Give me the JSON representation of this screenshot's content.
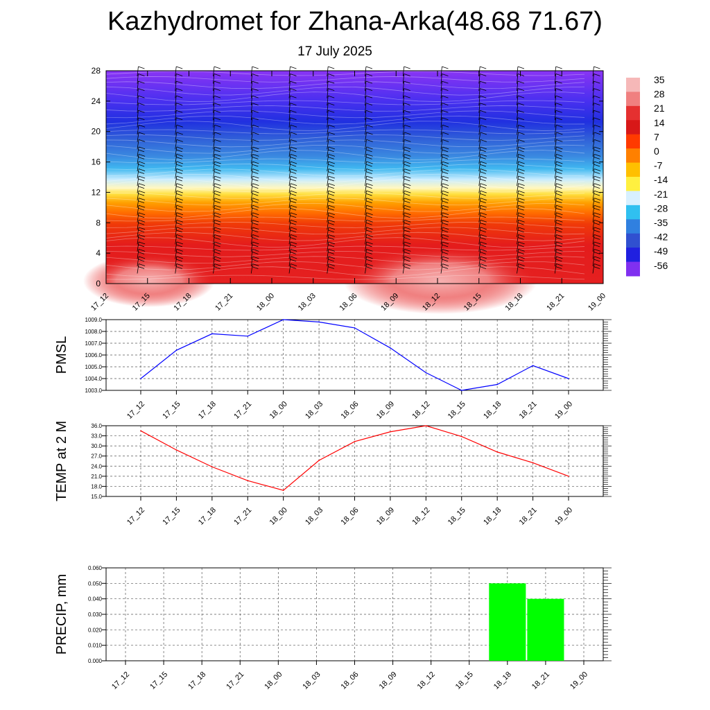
{
  "title": "Kazhydromet for Zhana-Arka(48.68 71.67)",
  "subtitle": "17 July 2025",
  "time_labels": [
    "17_12",
    "17_15",
    "17_18",
    "17_21",
    "18_00",
    "18_03",
    "18_06",
    "18_09",
    "18_12",
    "18_15",
    "18_18",
    "18_21",
    "19_00"
  ],
  "chart_data": [
    {
      "type": "heatmap",
      "y_ticks": [
        0,
        4,
        8,
        12,
        16,
        20,
        24,
        28
      ],
      "ylim": [
        0,
        28
      ],
      "x_categories": [
        "17_12",
        "17_15",
        "17_18",
        "17_21",
        "18_00",
        "18_03",
        "18_06",
        "18_09",
        "18_12",
        "18_15",
        "18_18",
        "18_21",
        "19_00"
      ],
      "colorbar_labels": [
        "35",
        "28",
        "21",
        "14",
        "7",
        "0",
        "-7",
        "-14",
        "-21",
        "-28",
        "-35",
        "-42",
        "-49",
        "-56"
      ],
      "colorbar_colors": [
        "#f6b8b8",
        "#f08080",
        "#e53030",
        "#d81818",
        "#ff3a00",
        "#ff8000",
        "#ffc000",
        "#fff040",
        "#d8f0ff",
        "#30c0f0",
        "#3080e0",
        "#3050d0",
        "#2020e0",
        "#8030f0"
      ],
      "wind_barbs": true
    },
    {
      "type": "line",
      "ylabel": "PMSL",
      "categories": [
        "17_12",
        "17_15",
        "17_18",
        "17_21",
        "18_00",
        "18_03",
        "18_06",
        "18_09",
        "18_12",
        "18_15",
        "18_18",
        "18_21",
        "19_00"
      ],
      "values": [
        1004.0,
        1006.4,
        1007.8,
        1007.6,
        1009.0,
        1008.8,
        1008.3,
        1006.6,
        1004.5,
        1003.0,
        1003.5,
        1005.1,
        1004.0
      ],
      "ylim": [
        1003.0,
        1009.0
      ],
      "y_ticks": [
        "1003.0",
        "1004.0",
        "1005.0",
        "1006.0",
        "1007.0",
        "1008.0",
        "1009.0"
      ],
      "color": "#0000ff",
      "grid": true
    },
    {
      "type": "line",
      "ylabel": "TEMP at 2 M",
      "categories": [
        "17_12",
        "17_15",
        "17_18",
        "17_21",
        "18_00",
        "18_03",
        "18_06",
        "18_09",
        "18_12",
        "18_15",
        "18_18",
        "18_21",
        "19_00"
      ],
      "values": [
        34.5,
        28.8,
        23.8,
        19.7,
        16.8,
        25.7,
        31.3,
        34.2,
        36.0,
        32.8,
        28.2,
        25.0,
        21.0
      ],
      "ylim": [
        15.0,
        36.0
      ],
      "y_ticks": [
        "15.0",
        "18.0",
        "21.0",
        "24.0",
        "27.0",
        "30.0",
        "33.0",
        "36.0"
      ],
      "color": "#ff0000",
      "grid": true
    },
    {
      "type": "bar",
      "ylabel": "PRECIP, mm",
      "categories": [
        "17_12",
        "17_15",
        "17_18",
        "17_21",
        "18_00",
        "18_03",
        "18_06",
        "18_09",
        "18_12",
        "18_15",
        "18_18",
        "18_21",
        "19_00"
      ],
      "values": [
        0,
        0,
        0,
        0,
        0,
        0,
        0,
        0,
        0,
        0,
        0.05,
        0.04,
        0
      ],
      "ylim": [
        0,
        0.06
      ],
      "y_ticks": [
        "0.000",
        "0.010",
        "0.020",
        "0.030",
        "0.040",
        "0.050",
        "0.060"
      ],
      "color": "#00ff00",
      "grid": true
    }
  ]
}
